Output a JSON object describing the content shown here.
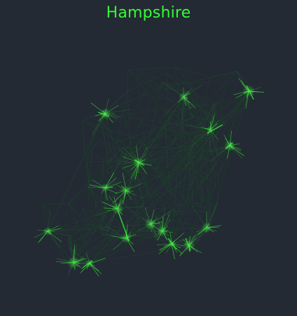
{
  "map": {
    "title": "Hampshire",
    "background_color": "#232a33",
    "accent_color": "#33ff33",
    "line_color_dim": "#1f4a2a",
    "line_color_bright": "#3cff3c"
  }
}
